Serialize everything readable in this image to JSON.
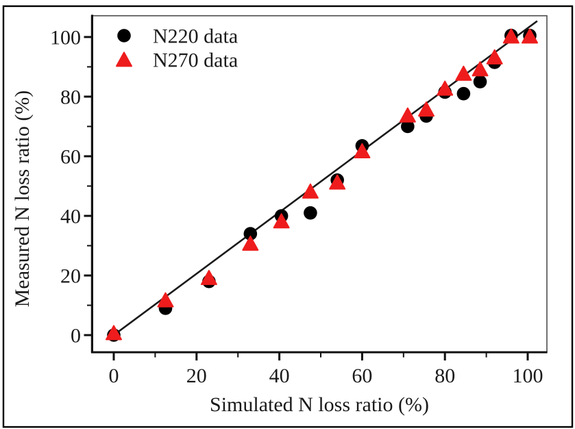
{
  "figure": {
    "background_color": "#ffffff",
    "outer_border_color": "#000000"
  },
  "chart_data": {
    "type": "scatter",
    "title": "",
    "xlabel": "Simulated N loss ratio (%)",
    "ylabel": "Measured N loss ratio (%)",
    "xlim": [
      -5.5,
      104.5
    ],
    "ylim": [
      -6,
      107
    ],
    "grid": false,
    "x_major_ticks": [
      0,
      20,
      40,
      60,
      80,
      100
    ],
    "x_minor_ticks": [
      10,
      30,
      50,
      70,
      90
    ],
    "y_major_ticks": [
      0,
      20,
      40,
      60,
      80,
      100
    ],
    "y_minor_ticks": [
      10,
      30,
      50,
      70,
      90
    ],
    "legend_position": "inside-top-left",
    "series": [
      {
        "name": "N220 data",
        "marker": "circle",
        "color": "#000000",
        "points": [
          [
            0,
            0
          ],
          [
            12.5,
            9
          ],
          [
            23,
            18
          ],
          [
            33,
            34
          ],
          [
            40.5,
            40
          ],
          [
            47.5,
            41
          ],
          [
            54,
            52
          ],
          [
            60,
            63.5
          ],
          [
            71,
            70
          ],
          [
            75.5,
            73.5
          ],
          [
            80,
            81.5
          ],
          [
            84.5,
            81
          ],
          [
            88.5,
            85
          ],
          [
            92,
            91.5
          ],
          [
            96,
            100.5
          ],
          [
            100.5,
            100.5
          ]
        ]
      },
      {
        "name": "N270 data",
        "marker": "triangle",
        "color": "#ee1c1c",
        "points": [
          [
            0,
            0.5
          ],
          [
            12.5,
            11.5
          ],
          [
            23,
            19
          ],
          [
            33,
            30.5
          ],
          [
            40.5,
            38
          ],
          [
            47.5,
            48
          ],
          [
            54,
            51
          ],
          [
            60,
            61.5
          ],
          [
            71,
            73.5
          ],
          [
            75.5,
            75.5
          ],
          [
            80,
            82.5
          ],
          [
            84.5,
            87.5
          ],
          [
            88.5,
            89
          ],
          [
            92,
            93
          ],
          [
            96,
            100
          ],
          [
            100.5,
            100
          ]
        ]
      }
    ],
    "fit_line": {
      "slope": 1.03,
      "intercept": 0,
      "x_start": -1,
      "x_end": 102.3,
      "color": "#1a1a1a"
    }
  }
}
